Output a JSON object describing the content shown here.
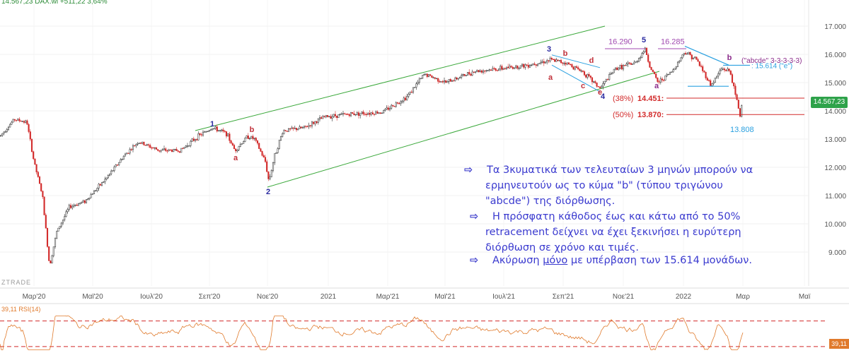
{
  "header": {
    "text": "14.567,23 DAX.wi +511,22 3,64%"
  },
  "watermark": "ZTRADE",
  "chart_data": {
    "type": "line",
    "y_axis": {
      "ticks": [
        "17.000",
        "16.000",
        "15.000",
        "14.000",
        "13.000",
        "12.000",
        "11.000",
        "10.000",
        "9.000"
      ],
      "tick_values": [
        17000,
        16000,
        15000,
        14000,
        13000,
        12000,
        11000,
        10000,
        9000
      ]
    },
    "x_axis": {
      "ticks": [
        "Μαρ'20",
        "Μαϊ'20",
        "Ιουλ'20",
        "Σεπ'20",
        "Νοε'20",
        "2021",
        "Μαρ'21",
        "Μαϊ'21",
        "Ιουλ'21",
        "Σεπ'21",
        "Νοε'21",
        "2022",
        "Μαρ",
        "Μαϊ"
      ]
    },
    "last_price": "14.567,23",
    "series": [
      {
        "points": [
          [
            0,
            13100
          ],
          [
            20,
            13700
          ],
          [
            38,
            13600
          ],
          [
            48,
            12200
          ],
          [
            60,
            11000
          ],
          [
            70,
            8500
          ],
          [
            80,
            9700
          ],
          [
            98,
            10600
          ],
          [
            120,
            10800
          ],
          [
            150,
            11600
          ],
          [
            175,
            12400
          ],
          [
            195,
            12900
          ],
          [
            225,
            12600
          ],
          [
            255,
            12600
          ],
          [
            280,
            13100
          ],
          [
            300,
            13400
          ],
          [
            320,
            13200
          ],
          [
            332,
            12600
          ],
          [
            350,
            13100
          ],
          [
            360,
            13000
          ],
          [
            375,
            12200
          ],
          [
            380,
            11500
          ],
          [
            388,
            12400
          ],
          [
            400,
            13300
          ],
          [
            430,
            13400
          ],
          [
            460,
            13800
          ],
          [
            500,
            13900
          ],
          [
            540,
            13950
          ],
          [
            575,
            14500
          ],
          [
            600,
            15300
          ],
          [
            630,
            15000
          ],
          [
            670,
            15400
          ],
          [
            710,
            15500
          ],
          [
            740,
            15600
          ],
          [
            760,
            15700
          ],
          [
            778,
            15800
          ],
          [
            800,
            15700
          ],
          [
            823,
            15400
          ],
          [
            848,
            14800
          ],
          [
            870,
            15500
          ],
          [
            898,
            15700
          ],
          [
            912,
            16200
          ],
          [
            918,
            15600
          ],
          [
            930,
            15000
          ],
          [
            950,
            15400
          ],
          [
            968,
            16100
          ],
          [
            985,
            15800
          ],
          [
            1005,
            14900
          ],
          [
            1020,
            15500
          ],
          [
            1032,
            15400
          ],
          [
            1038,
            14700
          ],
          [
            1044,
            14100
          ],
          [
            1046,
            13800
          ],
          [
            1050,
            14560
          ]
        ]
      }
    ],
    "channel": {
      "upper": [
        [
          276,
          13300
        ],
        [
          855,
          17000
        ]
      ],
      "lower": [
        [
          378,
          11300
        ],
        [
          932,
          15400
        ]
      ]
    },
    "levels": [
      {
        "label": "(38%)",
        "value_label": "14.451:",
        "value": 14451
      },
      {
        "label": "(50%)",
        "value_label": "13.870:",
        "value": 13870
      }
    ],
    "level_e": {
      "label": ": 15.614 (\"e\")",
      "value": 15614
    },
    "low_label": "13.808",
    "wave_labels": [
      {
        "text": "1",
        "x": 300,
        "y": 13450,
        "color": "#2a2aa0"
      },
      {
        "text": "b",
        "x": 356,
        "y": 13250,
        "color": "#c0303a"
      },
      {
        "text": "a",
        "x": 333,
        "y": 12250,
        "color": "#c0303a"
      },
      {
        "text": "2",
        "x": 379,
        "y": 11050,
        "color": "#2a2aa0"
      },
      {
        "text": "3",
        "x": 776,
        "y": 16100,
        "color": "#2a2aa0"
      },
      {
        "text": "b",
        "x": 799,
        "y": 15950,
        "color": "#c0303a"
      },
      {
        "text": "a",
        "x": 778,
        "y": 15100,
        "color": "#c0303a"
      },
      {
        "text": "d",
        "x": 836,
        "y": 15700,
        "color": "#c0303a"
      },
      {
        "text": "c",
        "x": 824,
        "y": 14800,
        "color": "#c0303a"
      },
      {
        "text": "e",
        "x": 848,
        "y": 14570,
        "color": "#c0303a"
      },
      {
        "text": "4",
        "x": 852,
        "y": 14430,
        "color": "#2a2aa0"
      },
      {
        "text": "5",
        "x": 910,
        "y": 16420,
        "color": "#2a2aa0"
      },
      {
        "text": "a",
        "x": 928,
        "y": 14800,
        "color": "#8a2a8a"
      },
      {
        "text": "b",
        "x": 1031,
        "y": 15800,
        "color": "#8a2a8a"
      }
    ],
    "peak_labels": [
      {
        "text": "16.290",
        "value": 16290
      },
      {
        "text": "16.285",
        "value": 16285
      }
    ],
    "b_note": "(''abcde'' 3-3-3-3-3)",
    "rsi": {
      "label": "39,11 RSI(14)",
      "value": "39,11",
      "upper": 70,
      "lower": 30
    }
  },
  "notes": [
    {
      "lines": [
        "Τα 3κυματικά των τελευταίων 3 μηνών μπορούν να",
        "ερμηνευτούν ως το κύμα \"b\" (τύπου τριγώνου",
        "\"abcde\") της διόρθωσης."
      ]
    },
    {
      "lines": [
        "Η πρόσφατη κάθοδος έως και κάτω από το 50%",
        "retracement δείχνει να έχει ξεκινήσει η ευρύτερη",
        "διόρθωση σε χρόνο και τιμές."
      ]
    },
    {
      "pre": "Ακύρωση ",
      "under": "μόνο",
      "post": " με υπέρβαση των 15.614 μονάδων."
    }
  ],
  "colors": {
    "up": "#2b2b2b",
    "down": "#d22a2a",
    "channel": "#3aa83a",
    "level": "#d22a2a",
    "accent": "#2aa0e0",
    "rsi": "#e07a2c"
  }
}
